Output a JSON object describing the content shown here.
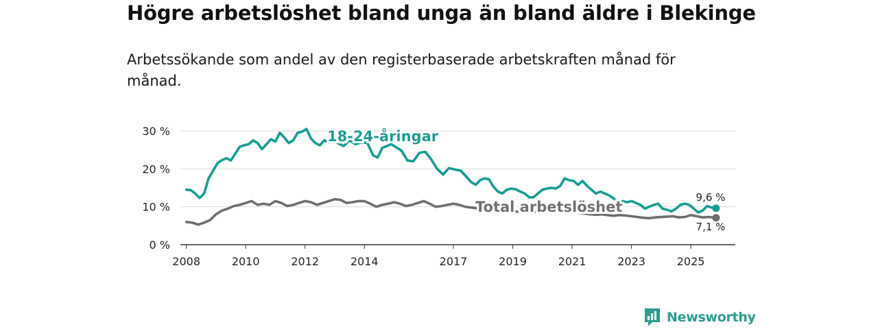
{
  "title": "Högre arbetslöshet bland unga än bland äldre i Blekinge",
  "subtitle": "Arbetssökande som andel av den registerbaserade arbetskraften månad för månad.",
  "brand": "Newsworthy",
  "colors": {
    "youth": "#159e93",
    "total": "#6f6e6f",
    "grid": "#d9d9d9",
    "axis": "#333333",
    "brand": "#2a9d8f"
  },
  "chart_data": {
    "type": "line",
    "title": "Högre arbetslöshet bland unga än bland äldre i Blekinge",
    "xlabel": "",
    "ylabel": "",
    "xlim": [
      2007.8,
      2026.5
    ],
    "ylim": [
      0,
      30
    ],
    "grid": true,
    "y_ticks": [
      0,
      10,
      20,
      30
    ],
    "y_tick_labels": [
      "0 %",
      "10 %",
      "20 %",
      "30 %"
    ],
    "x_ticks": [
      2008,
      2010,
      2012,
      2014,
      2017,
      2019,
      2021,
      2023,
      2025
    ],
    "x_tick_labels": [
      "2008",
      "2010",
      "2012",
      "2014",
      "2017",
      "2019",
      "2021",
      "2023",
      "2025"
    ],
    "series": [
      {
        "name": "18-24-åringar",
        "label": "18-24-åringar",
        "end_label": "9,6 %",
        "color": "#159e93",
        "x": [
          2008.0,
          2008.15,
          2008.3,
          2008.45,
          2008.6,
          2008.75,
          2008.9,
          2009.05,
          2009.2,
          2009.35,
          2009.5,
          2009.65,
          2009.8,
          2009.95,
          2010.1,
          2010.25,
          2010.4,
          2010.55,
          2010.7,
          2010.85,
          2011.0,
          2011.15,
          2011.3,
          2011.45,
          2011.6,
          2011.75,
          2011.9,
          2012.05,
          2012.2,
          2012.35,
          2012.5,
          2012.65,
          2012.8,
          2012.95,
          2013.1,
          2013.3,
          2013.5,
          2013.7,
          2013.9,
          2014.1,
          2014.3,
          2014.45,
          2014.6,
          2014.75,
          2014.9,
          2015.05,
          2015.25,
          2015.45,
          2015.65,
          2015.85,
          2016.05,
          2016.25,
          2016.45,
          2016.65,
          2016.85,
          2017.05,
          2017.25,
          2017.45,
          2017.6,
          2017.75,
          2017.9,
          2018.05,
          2018.2,
          2018.35,
          2018.5,
          2018.65,
          2018.8,
          2018.95,
          2019.1,
          2019.25,
          2019.4,
          2019.55,
          2019.7,
          2019.85,
          2020.0,
          2020.15,
          2020.3,
          2020.45,
          2020.6,
          2020.75,
          2020.9,
          2021.05,
          2021.2,
          2021.35,
          2021.5,
          2021.65,
          2021.8,
          2021.95,
          2022.1,
          2022.25,
          2022.4,
          2022.55,
          2022.7,
          2022.85,
          2023.0,
          2023.15,
          2023.3,
          2023.45,
          2023.6,
          2023.75,
          2023.9,
          2024.05,
          2024.2,
          2024.35,
          2024.5,
          2024.65,
          2024.8,
          2024.95,
          2025.1,
          2025.25,
          2025.4,
          2025.55,
          2025.7,
          2025.85
        ],
        "values": [
          14.5,
          14.4,
          13.5,
          12.3,
          13.5,
          17.5,
          19.5,
          21.5,
          22.3,
          22.8,
          22.2,
          24.0,
          25.8,
          26.2,
          26.5,
          27.5,
          26.8,
          25.2,
          26.5,
          27.8,
          27.2,
          29.5,
          28.3,
          26.8,
          27.5,
          29.5,
          29.8,
          30.5,
          28.0,
          26.8,
          26.2,
          27.5,
          27.0,
          27.8,
          26.8,
          26.0,
          27.5,
          26.5,
          27.0,
          26.8,
          23.5,
          23.0,
          25.5,
          26.0,
          26.5,
          25.8,
          24.8,
          22.2,
          22.0,
          24.2,
          24.5,
          22.5,
          20.0,
          18.5,
          20.2,
          19.8,
          19.5,
          17.8,
          16.5,
          15.8,
          17.0,
          17.5,
          17.2,
          15.3,
          14.0,
          13.5,
          14.5,
          14.8,
          14.6,
          14.0,
          13.5,
          12.5,
          12.5,
          13.5,
          14.5,
          14.8,
          15.0,
          14.8,
          15.5,
          17.5,
          17.0,
          16.8,
          15.8,
          16.8,
          15.5,
          14.5,
          13.5,
          14.0,
          13.5,
          13.0,
          12.2,
          11.2,
          11.5,
          11.2,
          11.5,
          11.0,
          10.5,
          9.5,
          10.0,
          10.5,
          10.8,
          9.5,
          9.2,
          8.8,
          9.5,
          10.5,
          10.8,
          10.5,
          9.5,
          8.5,
          9.0,
          10.2,
          9.8,
          9.6
        ]
      },
      {
        "name": "Total arbetslöshet",
        "label": "Total arbetslöshet",
        "end_label": "7,1 %",
        "color": "#6f6e6f",
        "x": [
          2008.0,
          2008.2,
          2008.4,
          2008.6,
          2008.8,
          2009.0,
          2009.2,
          2009.4,
          2009.6,
          2009.8,
          2010.0,
          2010.2,
          2010.4,
          2010.6,
          2010.8,
          2011.0,
          2011.2,
          2011.4,
          2011.6,
          2011.8,
          2012.0,
          2012.2,
          2012.4,
          2012.6,
          2012.8,
          2013.0,
          2013.2,
          2013.4,
          2013.6,
          2013.8,
          2014.0,
          2014.2,
          2014.4,
          2014.6,
          2014.8,
          2015.0,
          2015.2,
          2015.4,
          2015.6,
          2015.8,
          2016.0,
          2016.2,
          2016.4,
          2016.6,
          2016.8,
          2017.0,
          2017.2,
          2017.4,
          2017.6,
          2017.8,
          2018.0,
          2018.2,
          2018.4,
          2018.6,
          2018.8,
          2019.0,
          2019.2,
          2019.4,
          2019.6,
          2019.8,
          2020.0,
          2020.2,
          2020.4,
          2020.6,
          2020.8,
          2021.0,
          2021.2,
          2021.4,
          2021.6,
          2021.8,
          2022.0,
          2022.2,
          2022.4,
          2022.6,
          2022.8,
          2023.0,
          2023.2,
          2023.4,
          2023.6,
          2023.8,
          2024.0,
          2024.2,
          2024.4,
          2024.6,
          2024.8,
          2025.0,
          2025.2,
          2025.4,
          2025.6,
          2025.85
        ],
        "values": [
          6.0,
          5.8,
          5.3,
          5.8,
          6.5,
          8.0,
          9.0,
          9.5,
          10.2,
          10.5,
          11.0,
          11.5,
          10.5,
          10.8,
          10.5,
          11.5,
          11.0,
          10.2,
          10.5,
          11.0,
          11.5,
          11.2,
          10.5,
          11.0,
          11.5,
          12.0,
          11.8,
          11.0,
          11.2,
          11.5,
          11.5,
          10.8,
          10.0,
          10.5,
          10.8,
          11.2,
          10.8,
          10.2,
          10.5,
          11.0,
          11.5,
          10.8,
          10.0,
          10.2,
          10.5,
          10.8,
          10.5,
          10.0,
          9.8,
          9.6,
          9.5,
          9.3,
          9.2,
          9.0,
          8.9,
          8.8,
          8.7,
          8.6,
          8.5,
          8.5,
          8.8,
          9.0,
          9.2,
          9.0,
          8.8,
          8.6,
          8.4,
          8.2,
          8.0,
          7.9,
          8.0,
          7.8,
          7.6,
          7.8,
          7.7,
          7.5,
          7.3,
          7.1,
          7.0,
          7.2,
          7.3,
          7.4,
          7.5,
          7.2,
          7.3,
          7.8,
          7.5,
          7.2,
          7.3,
          7.1
        ]
      }
    ]
  }
}
